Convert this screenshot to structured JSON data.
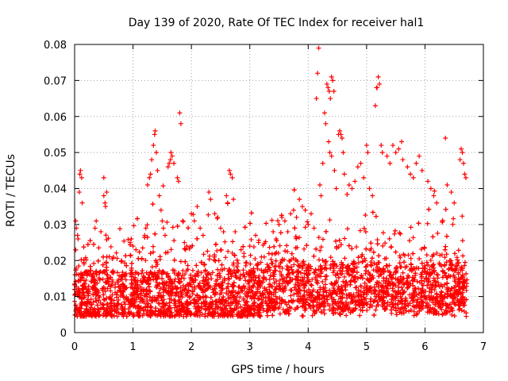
{
  "chart_data": {
    "type": "scatter",
    "title": "Day 139 of 2020, Rate Of TEC Index for receiver hal1",
    "xlabel": "GPS time / hours",
    "ylabel": "ROTI / TECUs",
    "xlim": [
      0,
      7
    ],
    "ylim": [
      0,
      0.08
    ],
    "x_ticks": [
      0,
      1,
      2,
      3,
      4,
      5,
      6,
      7
    ],
    "x_tick_labels": [
      "0",
      "1",
      "2",
      "3",
      "4",
      "5",
      "6",
      "7"
    ],
    "y_ticks": [
      0,
      0.01,
      0.02,
      0.03,
      0.04,
      0.05,
      0.06,
      0.07,
      0.08
    ],
    "y_tick_labels": [
      "0",
      "0.01",
      "0.02",
      "0.03",
      "0.04",
      "0.05",
      "0.06",
      "0.07",
      "0.08"
    ],
    "grid": true,
    "marker": "+",
    "marker_color": "#ff0000",
    "series": [
      {
        "name": "hal1 ROTI",
        "x_range": [
          0,
          6.72
        ],
        "description_values": "dense band 0.003–0.025 TECU/s throughout; sparse excursions",
        "points": [
          [
            0.02,
            0.031
          ],
          [
            0.03,
            0.029
          ],
          [
            0.05,
            0.027
          ],
          [
            0.06,
            0.026
          ],
          [
            0.08,
            0.039
          ],
          [
            0.09,
            0.044
          ],
          [
            0.1,
            0.045
          ],
          [
            0.12,
            0.043
          ],
          [
            0.13,
            0.036
          ],
          [
            0.5,
            0.043
          ],
          [
            0.5,
            0.038
          ],
          [
            0.52,
            0.036
          ],
          [
            0.53,
            0.035
          ],
          [
            0.55,
            0.039
          ],
          [
            0.35,
            0.029
          ],
          [
            0.37,
            0.031
          ],
          [
            0.45,
            0.028
          ],
          [
            0.95,
            0.025
          ],
          [
            0.97,
            0.026
          ],
          [
            1.0,
            0.024
          ],
          [
            1.05,
            0.023
          ],
          [
            1.2,
            0.027
          ],
          [
            1.22,
            0.029
          ],
          [
            1.25,
            0.041
          ],
          [
            1.28,
            0.043
          ],
          [
            1.3,
            0.044
          ],
          [
            1.32,
            0.048
          ],
          [
            1.35,
            0.052
          ],
          [
            1.37,
            0.055
          ],
          [
            1.38,
            0.056
          ],
          [
            1.4,
            0.05
          ],
          [
            1.42,
            0.045
          ],
          [
            1.45,
            0.038
          ],
          [
            1.48,
            0.034
          ],
          [
            1.5,
            0.031
          ],
          [
            1.52,
            0.029
          ],
          [
            1.55,
            0.027
          ],
          [
            1.6,
            0.046
          ],
          [
            1.62,
            0.047
          ],
          [
            1.64,
            0.048
          ],
          [
            1.65,
            0.05
          ],
          [
            1.67,
            0.049
          ],
          [
            1.7,
            0.047
          ],
          [
            1.76,
            0.043
          ],
          [
            1.78,
            0.042
          ],
          [
            1.8,
            0.061
          ],
          [
            1.82,
            0.058
          ],
          [
            1.85,
            0.031
          ],
          [
            1.88,
            0.025
          ],
          [
            1.9,
            0.023
          ],
          [
            1.92,
            0.024
          ],
          [
            2.0,
            0.033
          ],
          [
            2.05,
            0.031
          ],
          [
            2.1,
            0.035
          ],
          [
            2.15,
            0.029
          ],
          [
            2.2,
            0.027
          ],
          [
            2.3,
            0.039
          ],
          [
            2.33,
            0.037
          ],
          [
            2.4,
            0.033
          ],
          [
            2.45,
            0.032
          ],
          [
            2.5,
            0.029
          ],
          [
            2.55,
            0.028
          ],
          [
            2.6,
            0.038
          ],
          [
            2.62,
            0.036
          ],
          [
            2.65,
            0.045
          ],
          [
            2.67,
            0.044
          ],
          [
            2.7,
            0.043
          ],
          [
            2.72,
            0.037
          ],
          [
            2.75,
            0.028
          ],
          [
            2.85,
            0.023
          ],
          [
            2.9,
            0.022
          ],
          [
            3.0,
            0.024
          ],
          [
            3.1,
            0.027
          ],
          [
            3.15,
            0.025
          ],
          [
            3.2,
            0.021
          ],
          [
            3.4,
            0.028
          ],
          [
            3.45,
            0.026
          ],
          [
            3.5,
            0.03
          ],
          [
            3.55,
            0.032
          ],
          [
            3.6,
            0.031
          ],
          [
            3.65,
            0.028
          ],
          [
            3.7,
            0.033
          ],
          [
            3.75,
            0.034
          ],
          [
            3.8,
            0.032
          ],
          [
            3.85,
            0.037
          ],
          [
            3.9,
            0.035
          ],
          [
            3.95,
            0.034
          ],
          [
            4.0,
            0.03
          ],
          [
            4.05,
            0.033
          ],
          [
            4.1,
            0.029
          ],
          [
            4.14,
            0.065
          ],
          [
            4.16,
            0.072
          ],
          [
            4.18,
            0.079
          ],
          [
            4.2,
            0.041
          ],
          [
            4.22,
            0.038
          ],
          [
            4.25,
            0.047
          ],
          [
            4.28,
            0.061
          ],
          [
            4.3,
            0.058
          ],
          [
            4.32,
            0.069
          ],
          [
            4.34,
            0.068
          ],
          [
            4.36,
            0.067
          ],
          [
            4.38,
            0.065
          ],
          [
            4.4,
            0.071
          ],
          [
            4.42,
            0.07
          ],
          [
            4.44,
            0.067
          ],
          [
            4.35,
            0.053
          ],
          [
            4.37,
            0.05
          ],
          [
            4.4,
            0.049
          ],
          [
            4.45,
            0.045
          ],
          [
            4.48,
            0.04
          ],
          [
            4.52,
            0.055
          ],
          [
            4.54,
            0.056
          ],
          [
            4.56,
            0.055
          ],
          [
            4.58,
            0.054
          ],
          [
            4.6,
            0.05
          ],
          [
            4.62,
            0.044
          ],
          [
            4.7,
            0.041
          ],
          [
            4.75,
            0.04
          ],
          [
            4.8,
            0.042
          ],
          [
            4.85,
            0.046
          ],
          [
            4.9,
            0.047
          ],
          [
            4.95,
            0.043
          ],
          [
            5.0,
            0.052
          ],
          [
            5.02,
            0.05
          ],
          [
            5.05,
            0.04
          ],
          [
            5.1,
            0.038
          ],
          [
            5.15,
            0.063
          ],
          [
            5.17,
            0.068
          ],
          [
            5.18,
            0.068
          ],
          [
            5.2,
            0.071
          ],
          [
            5.22,
            0.069
          ],
          [
            5.25,
            0.052
          ],
          [
            5.27,
            0.05
          ],
          [
            5.35,
            0.049
          ],
          [
            5.4,
            0.047
          ],
          [
            5.45,
            0.052
          ],
          [
            5.5,
            0.05
          ],
          [
            5.55,
            0.051
          ],
          [
            5.6,
            0.053
          ],
          [
            5.62,
            0.048
          ],
          [
            5.7,
            0.046
          ],
          [
            5.75,
            0.044
          ],
          [
            5.8,
            0.043
          ],
          [
            5.85,
            0.047
          ],
          [
            5.9,
            0.049
          ],
          [
            5.95,
            0.045
          ],
          [
            6.05,
            0.042
          ],
          [
            6.1,
            0.04
          ],
          [
            6.15,
            0.038
          ],
          [
            6.2,
            0.036
          ],
          [
            6.35,
            0.054
          ],
          [
            6.38,
            0.041
          ],
          [
            6.45,
            0.039
          ],
          [
            6.5,
            0.036
          ],
          [
            6.6,
            0.048
          ],
          [
            6.62,
            0.051
          ],
          [
            6.64,
            0.05
          ],
          [
            6.66,
            0.047
          ],
          [
            6.68,
            0.044
          ],
          [
            6.7,
            0.043
          ]
        ]
      }
    ]
  }
}
